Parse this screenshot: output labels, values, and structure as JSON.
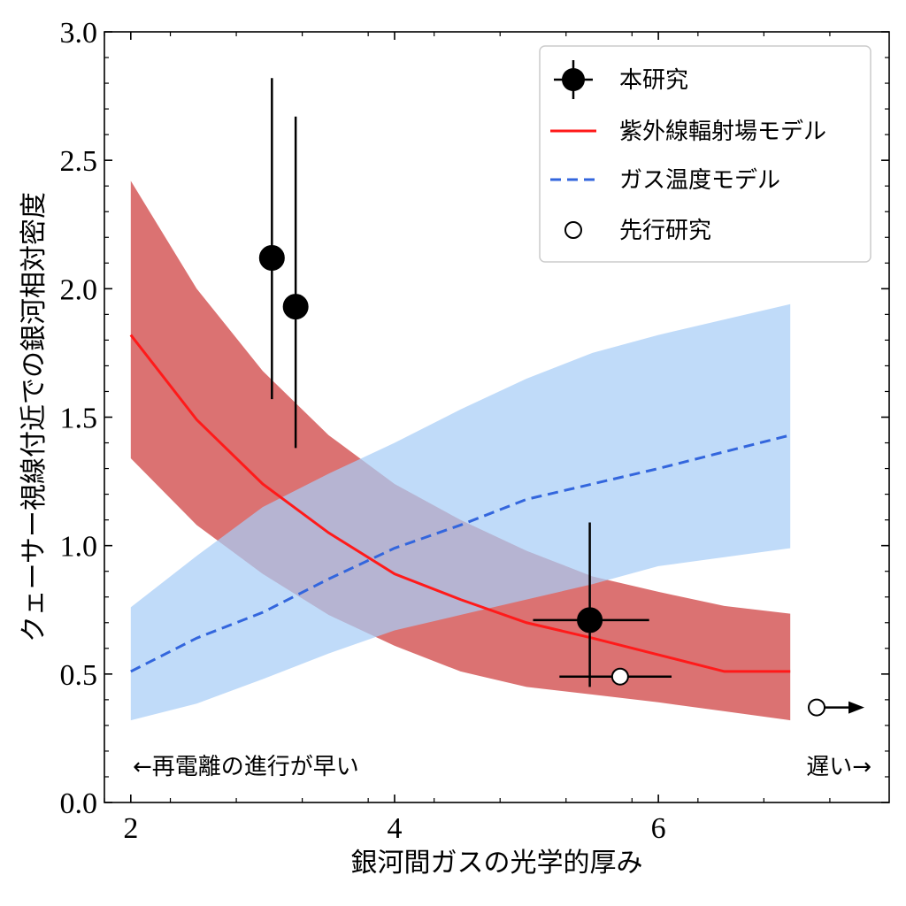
{
  "chart_data": {
    "type": "line",
    "xlabel": "銀河間ガスの光学的厚み",
    "ylabel": "クェーサー視線付近での銀河相対密度",
    "xlim": [
      1.8,
      7.75
    ],
    "ylim": [
      0.0,
      3.0
    ],
    "xticks": [
      2,
      4,
      6
    ],
    "yticks": [
      0.0,
      0.5,
      1.0,
      1.5,
      2.0,
      2.5,
      3.0
    ],
    "xtick_labels": [
      "2",
      "4",
      "6"
    ],
    "ytick_labels": [
      "0.0",
      "0.5",
      "1.0",
      "1.5",
      "2.0",
      "2.5",
      "3.0"
    ],
    "grid": false,
    "legend_position": "top-right",
    "legend": [
      {
        "label": "本研究",
        "marker": "filled-circle-errorbar"
      },
      {
        "label": "紫外線輻射場モデル",
        "marker": "solid-line"
      },
      {
        "label": "ガス温度モデル",
        "marker": "dashed-line"
      },
      {
        "label": "先行研究",
        "marker": "open-circle"
      }
    ],
    "series": [
      {
        "name": "紫外線輻射場モデル",
        "style": "solid",
        "color": "#ff1a1a",
        "band_color": "#d96a6a",
        "x": [
          2.0,
          2.5,
          3.0,
          3.5,
          4.0,
          4.5,
          5.0,
          5.5,
          6.0,
          6.5,
          7.0
        ],
        "y": [
          1.82,
          1.49,
          1.24,
          1.05,
          0.89,
          0.79,
          0.7,
          0.64,
          0.575,
          0.51,
          0.51
        ],
        "lower": [
          1.34,
          1.08,
          0.89,
          0.73,
          0.61,
          0.51,
          0.45,
          0.42,
          0.39,
          0.355,
          0.32
        ],
        "upper": [
          2.42,
          2.0,
          1.68,
          1.43,
          1.24,
          1.1,
          0.98,
          0.88,
          0.82,
          0.765,
          0.735
        ]
      },
      {
        "name": "ガス温度モデル",
        "style": "dashed",
        "color": "#3366dd",
        "band_color": "#a8cdf7",
        "x": [
          2.0,
          2.5,
          3.0,
          3.5,
          4.0,
          4.5,
          5.0,
          5.5,
          6.0,
          6.5,
          7.0
        ],
        "y": [
          0.51,
          0.64,
          0.74,
          0.87,
          0.99,
          1.08,
          1.18,
          1.24,
          1.3,
          1.365,
          1.43
        ],
        "lower": [
          0.32,
          0.385,
          0.48,
          0.58,
          0.67,
          0.73,
          0.79,
          0.85,
          0.92,
          0.955,
          0.99
        ],
        "upper": [
          0.76,
          0.96,
          1.15,
          1.28,
          1.4,
          1.53,
          1.65,
          1.75,
          1.82,
          1.88,
          1.94
        ]
      },
      {
        "name": "本研究",
        "style": "filled-markers",
        "color": "#000000",
        "points": [
          {
            "x": 3.07,
            "y": 2.12,
            "y_low": 1.57,
            "y_high": 2.82
          },
          {
            "x": 3.25,
            "y": 1.93,
            "y_low": 1.38,
            "y_high": 2.67
          },
          {
            "x": 5.48,
            "y": 0.71,
            "y_low": 0.45,
            "y_high": 1.09,
            "x_low": 5.05,
            "x_high": 5.93
          }
        ]
      },
      {
        "name": "先行研究",
        "style": "open-markers",
        "color": "#000000",
        "points": [
          {
            "x": 5.71,
            "y": 0.49,
            "x_low": 5.25,
            "x_high": 6.1
          },
          {
            "x": 7.2,
            "y": 0.37,
            "lower_limit_arrow": true
          }
        ]
      }
    ],
    "annotations": {
      "left": "←再電離の進行が早い",
      "right": "遅い→"
    }
  }
}
